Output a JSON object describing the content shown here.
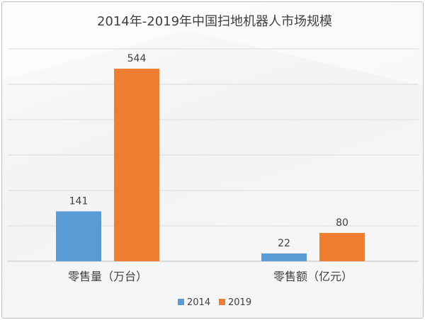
{
  "chart_data": {
    "type": "bar",
    "title": "2014年-2019年中国扫地机器人市场规模",
    "categories": [
      "零售量（万台）",
      "零售额（亿元）"
    ],
    "series": [
      {
        "name": "2014",
        "values": [
          141,
          22
        ],
        "color": "#5b9bd5"
      },
      {
        "name": "2019",
        "values": [
          544,
          80
        ],
        "color": "#ed7d31"
      }
    ],
    "ylim": [
      0,
      600
    ],
    "grid": true,
    "legend": "bottom",
    "data_labels": true
  }
}
